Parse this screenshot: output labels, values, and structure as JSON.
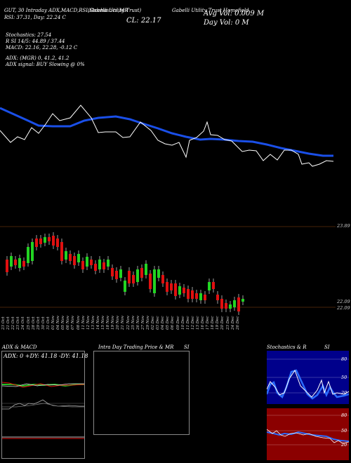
{
  "header": {
    "row1": [
      "(Gabelli  Utility  Trust)",
      "GUT",
      "Gabelli Utility Trust Homefield"
    ],
    "col1": "GUT, 30 Intraday ADX,MACD,RSI,Stochastics,MR",
    "col1b": "RSI: 37.31, Day: 22.24 C",
    "big_close": "CL: 22.17",
    "vol_avg": "Avg Vol: 0.009 M",
    "day_vol": "Day Vol: 0   M",
    "stochastics": "Stochastics: 27.54",
    "stoch_si": "R                SI 14/5: 44.89 / 37.44",
    "macd": "MACD: 22.16,  22.28,  -0.12  C",
    "adx": "ADX:                              (MGR) 0,  41.2,  41.2",
    "adx_signal": "ADX  signal:                                BUY Slowing @ 0%"
  },
  "price_axis": {
    "top": "23.89",
    "bottom": "22.09",
    "mid": "22.09"
  },
  "dates": [
    "23 Oct",
    "21 Oct",
    "22 Oct",
    "23 Oct",
    "24 Oct",
    "25 Oct",
    "28 Oct",
    "29 Oct",
    "30 Oct",
    "31 Oct",
    "01 Nov",
    "04 Nov",
    "05 Nov",
    "06 Nov",
    "07 Nov",
    "08 Nov",
    "11 Nov",
    "12 Nov",
    "13 Nov",
    "14 Nov",
    "15 Nov",
    "18 Nov",
    "19 Nov",
    "20 Nov",
    "21 Nov",
    "22 Nov",
    "25 Nov",
    "26 Nov",
    "27 Nov",
    "29 Nov",
    "02 Dec",
    "03 Dec",
    "04 Dec",
    "05 Dec",
    "06 Dec",
    "09 Dec",
    "10 Dec",
    "11 Dec",
    "12 Dec",
    "13 Dec",
    "16 Dec",
    "17 Dec",
    "18 Dec",
    "19 Dec",
    "20 Dec",
    "23 Dec",
    "24 Dec",
    "26 Dec"
  ],
  "panels": {
    "adx_title": "ADX  & MACD",
    "adx_values": "ADX: 0   +DY: 41.18   -DY: 41.18",
    "intraday_title": "Intra  Day Trading Price  & MR",
    "intraday_si": "SI",
    "stoch_title": "Stochastics & R",
    "stoch_si": "SI",
    "stoch_ticks": [
      "80",
      "50",
      "20"
    ],
    "rsi_ticks": [
      "80",
      "50",
      "20"
    ]
  },
  "colors": {
    "ma_line": "#1a4fe8",
    "up": "#22d422",
    "down": "#e01010",
    "stoch_bg": "#00008b",
    "rsi_bg": "#8b0000"
  }
}
